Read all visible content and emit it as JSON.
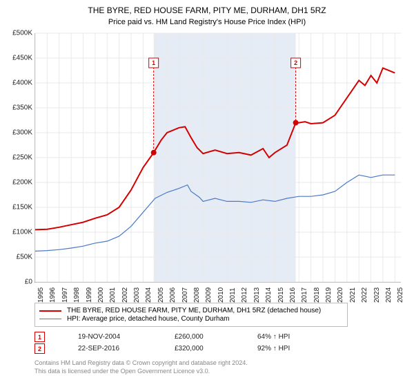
{
  "title": "THE BYRE, RED HOUSE FARM, PITY ME, DURHAM, DH1 5RZ",
  "subtitle": "Price paid vs. HM Land Registry's House Price Index (HPI)",
  "chart": {
    "type": "line",
    "background_color": "#ffffff",
    "grid_color": "#e9e9e9",
    "shaded_band": {
      "x_start": 2004.88,
      "x_end": 2016.73,
      "fill": "#e6ecf5"
    },
    "xlim": [
      1995,
      2025.5
    ],
    "ylim": [
      0,
      500000
    ],
    "ytick_step": 50000,
    "y_prefix": "£",
    "y_suffix_k": "K",
    "x_ticks": [
      1995,
      1996,
      1997,
      1998,
      1999,
      2000,
      2001,
      2002,
      2003,
      2004,
      2005,
      2006,
      2007,
      2008,
      2009,
      2010,
      2011,
      2012,
      2013,
      2014,
      2015,
      2016,
      2017,
      2018,
      2019,
      2020,
      2021,
      2022,
      2023,
      2024,
      2025
    ],
    "series": [
      {
        "id": "property",
        "label": "THE BYRE, RED HOUSE FARM, PITY ME, DURHAM, DH1 5RZ (detached house)",
        "color": "#d40000",
        "line_width": 2,
        "data": [
          [
            1995,
            105000
          ],
          [
            1996,
            106000
          ],
          [
            1997,
            110000
          ],
          [
            1998,
            115000
          ],
          [
            1999,
            120000
          ],
          [
            2000,
            128000
          ],
          [
            2001,
            135000
          ],
          [
            2002,
            150000
          ],
          [
            2003,
            185000
          ],
          [
            2004,
            230000
          ],
          [
            2004.88,
            260000
          ],
          [
            2005.5,
            285000
          ],
          [
            2006,
            300000
          ],
          [
            2006.5,
            305000
          ],
          [
            2007,
            310000
          ],
          [
            2007.5,
            312000
          ],
          [
            2008,
            290000
          ],
          [
            2008.5,
            270000
          ],
          [
            2009,
            258000
          ],
          [
            2010,
            265000
          ],
          [
            2011,
            258000
          ],
          [
            2012,
            260000
          ],
          [
            2013,
            255000
          ],
          [
            2014,
            268000
          ],
          [
            2014.5,
            250000
          ],
          [
            2015,
            260000
          ],
          [
            2016,
            275000
          ],
          [
            2016.73,
            320000
          ],
          [
            2017,
            320000
          ],
          [
            2017.5,
            322000
          ],
          [
            2018,
            318000
          ],
          [
            2019,
            320000
          ],
          [
            2020,
            335000
          ],
          [
            2021,
            370000
          ],
          [
            2022,
            405000
          ],
          [
            2022.5,
            395000
          ],
          [
            2023,
            415000
          ],
          [
            2023.5,
            400000
          ],
          [
            2024,
            430000
          ],
          [
            2025,
            420000
          ]
        ],
        "markers": [
          {
            "seq": "1",
            "x": 2004.88,
            "y": 260000,
            "label_y_frac": 0.1
          },
          {
            "seq": "2",
            "x": 2016.73,
            "y": 320000,
            "label_y_frac": 0.1
          }
        ]
      },
      {
        "id": "hpi",
        "label": "HPI: Average price, detached house, County Durham",
        "color": "#4a79c7",
        "line_width": 1.2,
        "data": [
          [
            1995,
            62000
          ],
          [
            1996,
            63000
          ],
          [
            1997,
            65000
          ],
          [
            1998,
            68000
          ],
          [
            1999,
            72000
          ],
          [
            2000,
            78000
          ],
          [
            2001,
            82000
          ],
          [
            2002,
            92000
          ],
          [
            2003,
            112000
          ],
          [
            2004,
            140000
          ],
          [
            2005,
            168000
          ],
          [
            2006,
            180000
          ],
          [
            2007,
            188000
          ],
          [
            2007.7,
            195000
          ],
          [
            2008,
            182000
          ],
          [
            2008.7,
            170000
          ],
          [
            2009,
            162000
          ],
          [
            2010,
            168000
          ],
          [
            2011,
            162000
          ],
          [
            2012,
            162000
          ],
          [
            2013,
            160000
          ],
          [
            2014,
            165000
          ],
          [
            2015,
            162000
          ],
          [
            2016,
            168000
          ],
          [
            2017,
            172000
          ],
          [
            2018,
            172000
          ],
          [
            2019,
            175000
          ],
          [
            2020,
            182000
          ],
          [
            2021,
            200000
          ],
          [
            2022,
            215000
          ],
          [
            2023,
            210000
          ],
          [
            2024,
            215000
          ],
          [
            2025,
            215000
          ]
        ],
        "markers": []
      }
    ]
  },
  "legend": {
    "items": [
      {
        "ref": "property"
      },
      {
        "ref": "hpi"
      }
    ]
  },
  "sales": [
    {
      "seq": "1",
      "date": "19-NOV-2004",
      "price": "£260,000",
      "pct": "64% ↑ HPI",
      "color": "#d40000"
    },
    {
      "seq": "2",
      "date": "22-SEP-2016",
      "price": "£320,000",
      "pct": "92% ↑ HPI",
      "color": "#d40000"
    }
  ],
  "footer": {
    "line1": "Contains HM Land Registry data © Crown copyright and database right 2024.",
    "line2": "This data is licensed under the Open Government Licence v3.0."
  }
}
